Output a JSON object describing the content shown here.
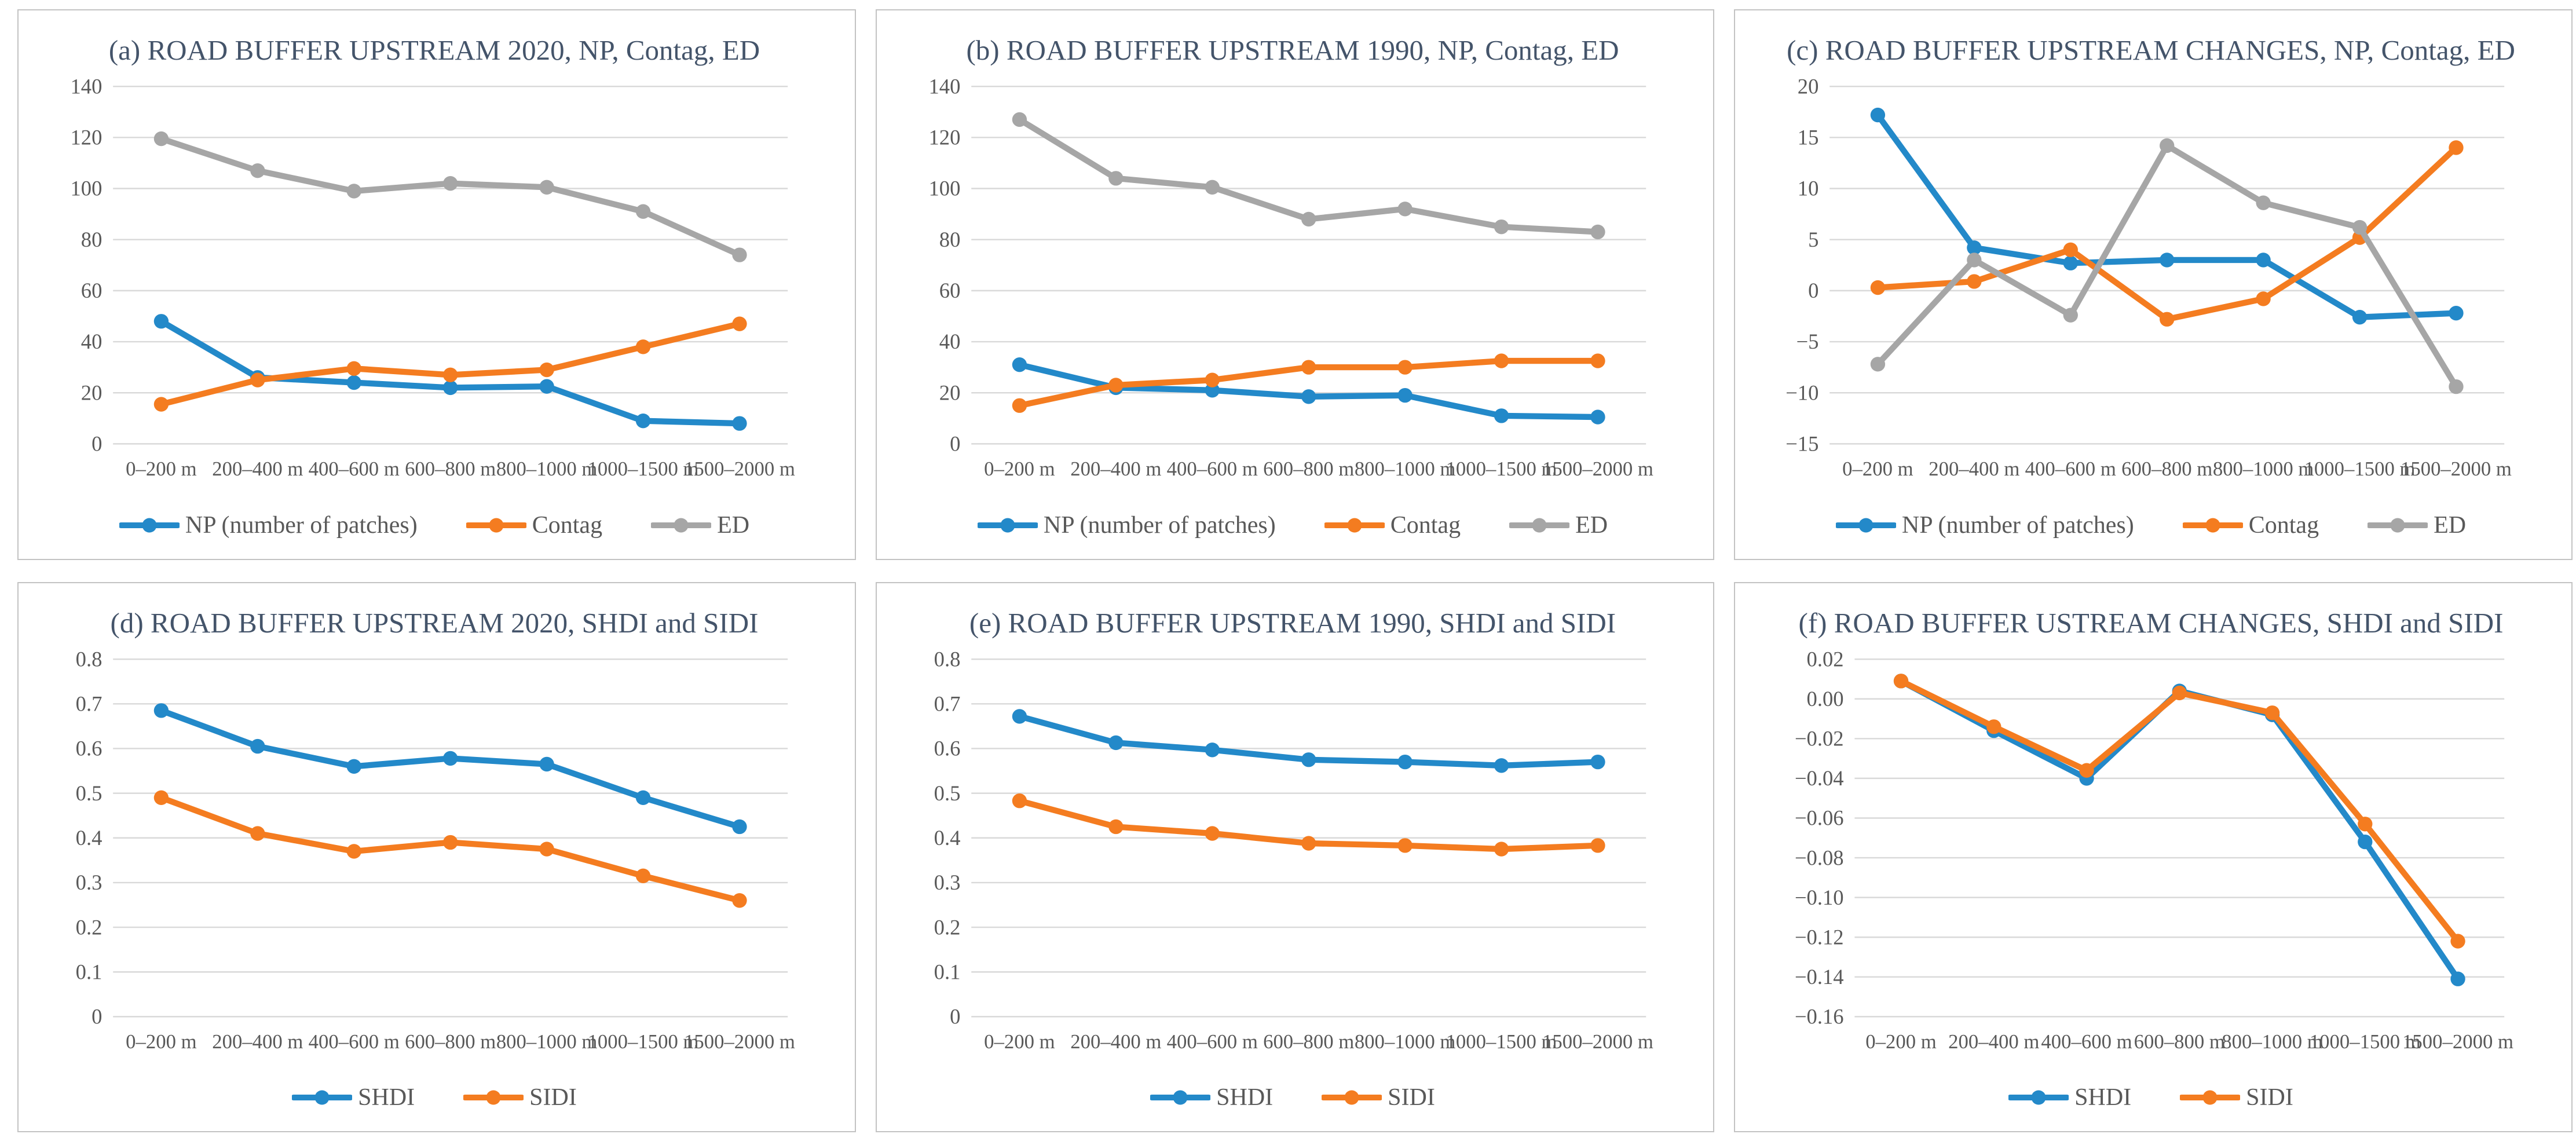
{
  "figure": {
    "description": "Six line-chart panels (a)-(f) of road buffer upstream landscape metrics",
    "panel_ids": [
      "a",
      "b",
      "c",
      "d",
      "e",
      "f"
    ]
  },
  "colors": {
    "blue": "#2389c9",
    "orange": "#f47c20",
    "gray": "#a6a6a6",
    "gridline": "#d9d9d9",
    "tick_text": "#595959",
    "title_text": "#44546a",
    "panel_border": "#c3c3c3"
  },
  "chart_data": [
    {
      "id": "a",
      "type": "line",
      "title": "(a) ROAD BUFFER UPSTREAM 2020, NP, Contag, ED",
      "categories": [
        "0–200 m",
        "200–400 m",
        "400–600 m",
        "600–800 m",
        "800–1000 m",
        "1000–1500 m",
        "1500–2000 m"
      ],
      "series": [
        {
          "name": "NP (number of patches)",
          "color_key": "blue",
          "values": [
            48,
            26,
            24,
            22,
            22.5,
            9,
            8
          ]
        },
        {
          "name": "Contag",
          "color_key": "orange",
          "values": [
            15.5,
            25,
            29.5,
            27,
            29,
            38,
            47
          ]
        },
        {
          "name": "ED",
          "color_key": "gray",
          "values": [
            119.5,
            107,
            99,
            102,
            100.5,
            91,
            74
          ]
        }
      ],
      "ylim": [
        0,
        140
      ],
      "ytick_values": [
        140,
        120,
        100,
        80,
        60,
        40,
        20,
        0
      ],
      "ytick_labels": [
        "140",
        "120",
        "100",
        "80",
        "60",
        "40",
        "20",
        "0"
      ],
      "grid": true,
      "legend_position": "bottom"
    },
    {
      "id": "b",
      "type": "line",
      "title": "(b) ROAD BUFFER UPSTREAM 1990, NP, Contag, ED",
      "categories": [
        "0–200 m",
        "200–400 m",
        "400–600 m",
        "600–800 m",
        "800–1000 m",
        "1000–1500 m",
        "1500–2000 m"
      ],
      "series": [
        {
          "name": "NP (number of patches)",
          "color_key": "blue",
          "values": [
            31,
            22,
            21,
            18.5,
            19,
            11,
            10.5
          ]
        },
        {
          "name": "Contag",
          "color_key": "orange",
          "values": [
            15,
            23,
            25,
            30,
            30,
            32.5,
            32.5
          ]
        },
        {
          "name": "ED",
          "color_key": "gray",
          "values": [
            127,
            104,
            100.5,
            88,
            92,
            85,
            83
          ]
        }
      ],
      "ylim": [
        0,
        140
      ],
      "ytick_values": [
        140,
        120,
        100,
        80,
        60,
        40,
        20,
        0
      ],
      "ytick_labels": [
        "140",
        "120",
        "100",
        "80",
        "60",
        "40",
        "20",
        "0"
      ],
      "grid": true,
      "legend_position": "bottom"
    },
    {
      "id": "c",
      "type": "line",
      "title": "(c) ROAD BUFFER UPSTREAM CHANGES, NP, Contag, ED",
      "categories": [
        "0–200 m",
        "200–400 m",
        "400–600 m",
        "600–800 m",
        "800–1000 m",
        "1000–1500 m",
        "1500–2000 m"
      ],
      "series": [
        {
          "name": "NP (number of patches)",
          "color_key": "blue",
          "values": [
            17.2,
            4.2,
            2.7,
            3,
            3,
            -2.6,
            -2.2
          ]
        },
        {
          "name": "Contag",
          "color_key": "orange",
          "values": [
            0.3,
            0.9,
            4,
            -2.8,
            -0.8,
            5.2,
            14
          ]
        },
        {
          "name": "ED",
          "color_key": "gray",
          "values": [
            -7.2,
            3,
            -2.4,
            14.2,
            8.6,
            6.2,
            -9.4
          ]
        }
      ],
      "ylim": [
        -15,
        20
      ],
      "ytick_values": [
        20,
        15,
        10,
        5,
        0,
        -5,
        -10,
        -15
      ],
      "ytick_labels": [
        "20",
        "15",
        "10",
        "5",
        "0",
        "−5",
        "−10",
        "−15"
      ],
      "grid": true,
      "legend_position": "bottom"
    },
    {
      "id": "d",
      "type": "line",
      "title": "(d) ROAD BUFFER UPSTREAM 2020, SHDI and SIDI",
      "categories": [
        "0–200 m",
        "200–400 m",
        "400–600 m",
        "600–800 m",
        "800–1000 m",
        "1000–1500 m",
        "1500–2000 m"
      ],
      "series": [
        {
          "name": "SHDI",
          "color_key": "blue",
          "values": [
            0.685,
            0.605,
            0.56,
            0.578,
            0.565,
            0.49,
            0.425
          ]
        },
        {
          "name": "SIDI",
          "color_key": "orange",
          "values": [
            0.49,
            0.41,
            0.37,
            0.39,
            0.375,
            0.315,
            0.26
          ]
        }
      ],
      "ylim": [
        0,
        0.8
      ],
      "ytick_values": [
        0.8,
        0.7,
        0.6,
        0.5,
        0.4,
        0.3,
        0.2,
        0.1,
        0
      ],
      "ytick_labels": [
        "0.8",
        "0.7",
        "0.6",
        "0.5",
        "0.4",
        "0.3",
        "0.2",
        "0.1",
        "0"
      ],
      "grid": true,
      "legend_position": "bottom"
    },
    {
      "id": "e",
      "type": "line",
      "title": "(e) ROAD BUFFER UPSTREAM 1990, SHDI and SIDI",
      "categories": [
        "0–200 m",
        "200–400 m",
        "400–600 m",
        "600–800 m",
        "800–1000 m",
        "1000–1500 m",
        "1500–2000 m"
      ],
      "series": [
        {
          "name": "SHDI",
          "color_key": "blue",
          "values": [
            0.672,
            0.613,
            0.597,
            0.575,
            0.57,
            0.562,
            0.57
          ]
        },
        {
          "name": "SIDI",
          "color_key": "orange",
          "values": [
            0.483,
            0.425,
            0.41,
            0.388,
            0.383,
            0.375,
            0.383
          ]
        }
      ],
      "ylim": [
        0,
        0.8
      ],
      "ytick_values": [
        0.8,
        0.7,
        0.6,
        0.5,
        0.4,
        0.3,
        0.2,
        0.1,
        0
      ],
      "ytick_labels": [
        "0.8",
        "0.7",
        "0.6",
        "0.5",
        "0.4",
        "0.3",
        "0.2",
        "0.1",
        "0"
      ],
      "grid": true,
      "legend_position": "bottom"
    },
    {
      "id": "f",
      "type": "line",
      "title": "(f) ROAD BUFFER USTREAM CHANGES, SHDI and SIDI",
      "categories": [
        "0–200 m",
        "200–400 m",
        "400–600 m",
        "600–800 m",
        "800–1000 m",
        "1000–1500 m",
        "1500–2000 m"
      ],
      "series": [
        {
          "name": "SHDI",
          "color_key": "blue",
          "values": [
            0.009,
            -0.016,
            -0.04,
            0.004,
            -0.008,
            -0.072,
            -0.141
          ]
        },
        {
          "name": "SIDI",
          "color_key": "orange",
          "values": [
            0.009,
            -0.014,
            -0.036,
            0.003,
            -0.007,
            -0.063,
            -0.122
          ]
        }
      ],
      "ylim": [
        -0.16,
        0.02
      ],
      "ytick_values": [
        0.02,
        0,
        -0.02,
        -0.04,
        -0.06,
        -0.08,
        -0.1,
        -0.12,
        -0.14,
        -0.16
      ],
      "ytick_labels": [
        "0.02",
        "0.00",
        "−0.02",
        "−0.04",
        "−0.06",
        "−0.08",
        "−0.10",
        "−0.12",
        "−0.14",
        "−0.16"
      ],
      "grid": true,
      "legend_position": "bottom"
    }
  ]
}
